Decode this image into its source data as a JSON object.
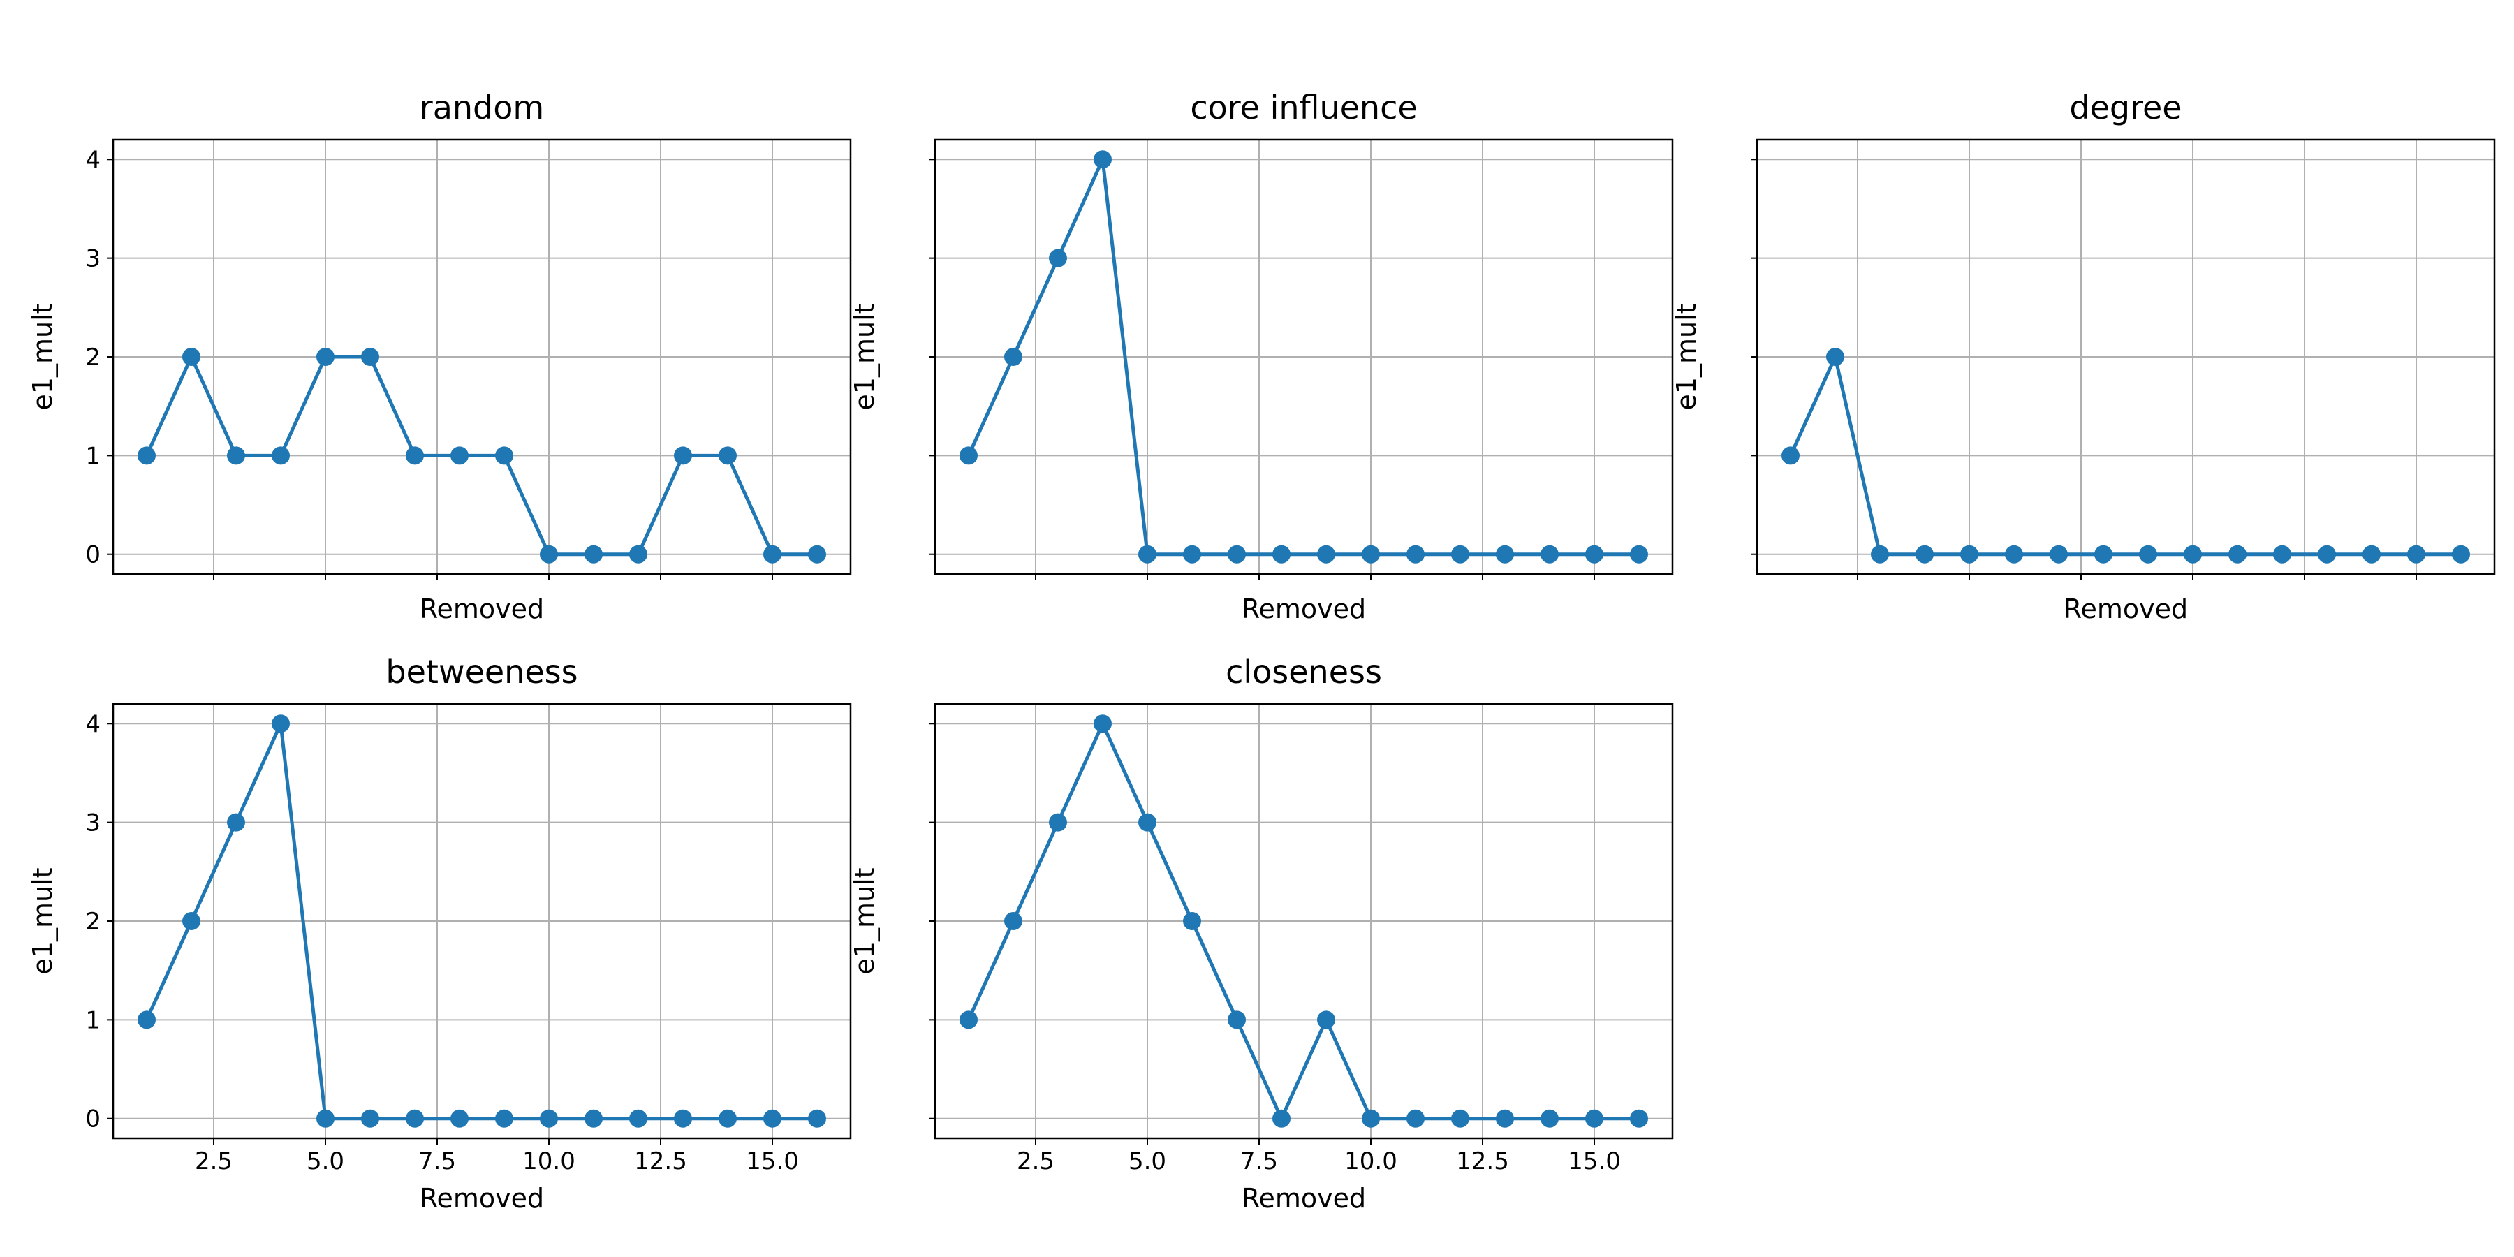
{
  "chart_data": [
    {
      "type": "line",
      "title": "random",
      "xlabel": "Removed",
      "ylabel": "e1_mult",
      "x": [
        1,
        2,
        3,
        4,
        5,
        6,
        7,
        8,
        9,
        10,
        11,
        12,
        13,
        14,
        15,
        16
      ],
      "series": [
        {
          "values": [
            1,
            2,
            1,
            1,
            2,
            2,
            1,
            1,
            1,
            0,
            0,
            0,
            1,
            1,
            0,
            0
          ]
        }
      ],
      "xticks": [
        2.5,
        5.0,
        7.5,
        10.0,
        12.5,
        15.0
      ],
      "xtick_labels": [],
      "yticks": [
        0,
        1,
        2,
        3,
        4
      ],
      "ytick_labels": [
        "0",
        "1",
        "2",
        "3",
        "4"
      ],
      "xlim": [
        0.25,
        16.75
      ],
      "ylim": [
        -0.2,
        4.2
      ],
      "grid": true,
      "color": "#1f77b4"
    },
    {
      "type": "line",
      "title": "core influence",
      "xlabel": "Removed",
      "ylabel": "e1_mult",
      "x": [
        1,
        2,
        3,
        4,
        5,
        6,
        7,
        8,
        9,
        10,
        11,
        12,
        13,
        14,
        15,
        16
      ],
      "series": [
        {
          "values": [
            1,
            2,
            3,
            4,
            0,
            0,
            0,
            0,
            0,
            0,
            0,
            0,
            0,
            0,
            0,
            0
          ]
        }
      ],
      "xticks": [
        2.5,
        5.0,
        7.5,
        10.0,
        12.5,
        15.0
      ],
      "xtick_labels": [],
      "yticks": [
        0,
        1,
        2,
        3,
        4
      ],
      "ytick_labels": [],
      "xlim": [
        0.25,
        16.75
      ],
      "ylim": [
        -0.2,
        4.2
      ],
      "grid": true,
      "color": "#1f77b4"
    },
    {
      "type": "line",
      "title": "degree",
      "xlabel": "Removed",
      "ylabel": "e1_mult",
      "x": [
        1,
        2,
        3,
        4,
        5,
        6,
        7,
        8,
        9,
        10,
        11,
        12,
        13,
        14,
        15,
        16
      ],
      "series": [
        {
          "values": [
            1,
            2,
            0,
            0,
            0,
            0,
            0,
            0,
            0,
            0,
            0,
            0,
            0,
            0,
            0,
            0
          ]
        }
      ],
      "xticks": [
        2.5,
        5.0,
        7.5,
        10.0,
        12.5,
        15.0
      ],
      "xtick_labels": [],
      "yticks": [
        0,
        1,
        2,
        3,
        4
      ],
      "ytick_labels": [],
      "xlim": [
        0.25,
        16.75
      ],
      "ylim": [
        -0.2,
        4.2
      ],
      "grid": true,
      "color": "#1f77b4"
    },
    {
      "type": "line",
      "title": "betweeness",
      "xlabel": "Removed",
      "ylabel": "e1_mult",
      "x": [
        1,
        2,
        3,
        4,
        5,
        6,
        7,
        8,
        9,
        10,
        11,
        12,
        13,
        14,
        15,
        16
      ],
      "series": [
        {
          "values": [
            1,
            2,
            3,
            4,
            0,
            0,
            0,
            0,
            0,
            0,
            0,
            0,
            0,
            0,
            0,
            0
          ]
        }
      ],
      "xticks": [
        2.5,
        5.0,
        7.5,
        10.0,
        12.5,
        15.0
      ],
      "xtick_labels": [
        "2.5",
        "5.0",
        "7.5",
        "10.0",
        "12.5",
        "15.0"
      ],
      "yticks": [
        0,
        1,
        2,
        3,
        4
      ],
      "ytick_labels": [
        "0",
        "1",
        "2",
        "3",
        "4"
      ],
      "xlim": [
        0.25,
        16.75
      ],
      "ylim": [
        -0.2,
        4.2
      ],
      "grid": true,
      "color": "#1f77b4"
    },
    {
      "type": "line",
      "title": "closeness",
      "xlabel": "Removed",
      "ylabel": "e1_mult",
      "x": [
        1,
        2,
        3,
        4,
        5,
        6,
        7,
        8,
        9,
        10,
        11,
        12,
        13,
        14,
        15,
        16
      ],
      "series": [
        {
          "values": [
            1,
            2,
            3,
            4,
            3,
            2,
            1,
            0,
            1,
            0,
            0,
            0,
            0,
            0,
            0,
            0
          ]
        }
      ],
      "xticks": [
        2.5,
        5.0,
        7.5,
        10.0,
        12.5,
        15.0
      ],
      "xtick_labels": [
        "2.5",
        "5.0",
        "7.5",
        "10.0",
        "12.5",
        "15.0"
      ],
      "yticks": [
        0,
        1,
        2,
        3,
        4
      ],
      "ytick_labels": [],
      "xlim": [
        0.25,
        16.75
      ],
      "ylim": [
        -0.2,
        4.2
      ],
      "grid": true,
      "color": "#1f77b4"
    }
  ]
}
